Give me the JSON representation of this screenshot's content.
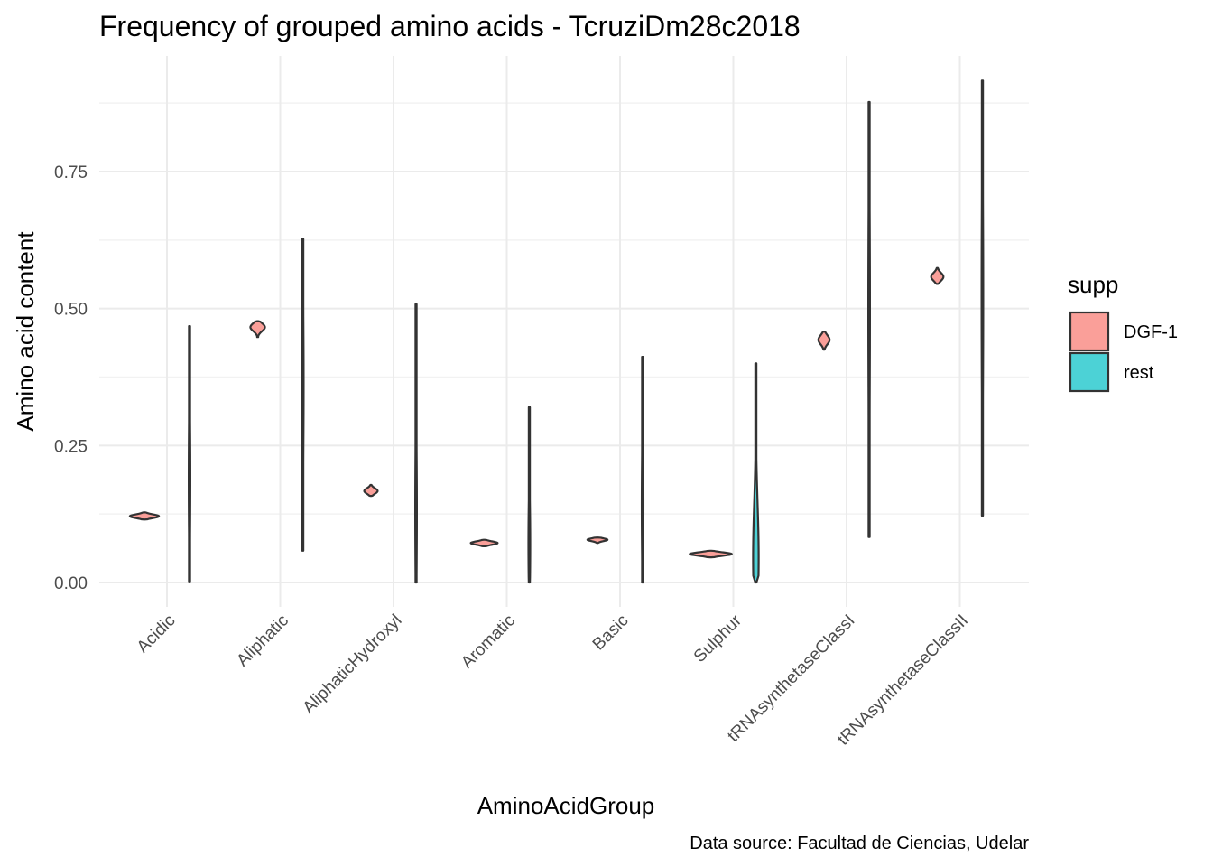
{
  "chart_data": {
    "type": "violin",
    "title": "Frequency of grouped amino acids - TcruziDm28c2018",
    "xlabel": "AminoAcidGroup",
    "ylabel": "Amino acid content",
    "caption": "Data source: Facultad de Ciencias, Udelar",
    "categories": [
      "Acidic",
      "Aliphatic",
      "AliphaticHydroxyl",
      "Aromatic",
      "Basic",
      "Sulphur",
      "tRNAsynthetaseClassI",
      "tRNAsynthetaseClassII"
    ],
    "ylim": [
      -0.09,
      0.92
    ],
    "yticks": [
      0.0,
      0.25,
      0.5,
      0.75
    ],
    "ytick_labels": [
      "0.00",
      "0.25",
      "0.50",
      "0.75"
    ],
    "grid": true,
    "legend": {
      "title": "supp",
      "position": "right",
      "entries": [
        {
          "name": "DGF-1",
          "color": "#F8766D"
        },
        {
          "name": "rest",
          "color": "#00BFC4"
        }
      ]
    },
    "series": [
      {
        "name": "DGF-1",
        "color": "#F8766D",
        "ranges": [
          [
            0.115,
            0.128
          ],
          [
            0.448,
            0.477
          ],
          [
            0.158,
            0.178
          ],
          [
            0.066,
            0.078
          ],
          [
            0.072,
            0.082
          ],
          [
            0.046,
            0.058
          ],
          [
            0.425,
            0.458
          ],
          [
            0.545,
            0.574
          ]
        ],
        "peaks": [
          0.121,
          0.466,
          0.167,
          0.072,
          0.078,
          0.052,
          0.443,
          0.558
        ],
        "max_half_width": [
          0.52,
          0.26,
          0.24,
          0.48,
          0.36,
          0.75,
          0.2,
          0.22
        ]
      },
      {
        "name": "rest",
        "color": "#00BFC4",
        "ranges": [
          [
            0.002,
            0.468
          ],
          [
            0.058,
            0.627
          ],
          [
            0.0,
            0.508
          ],
          [
            0.0,
            0.32
          ],
          [
            0.0,
            0.412
          ],
          [
            0.0,
            0.4
          ],
          [
            0.083,
            0.877
          ],
          [
            0.122,
            0.916
          ]
        ],
        "peaks": [
          0.19,
          0.36,
          0.13,
          0.07,
          0.14,
          0.045,
          0.5,
          0.52
        ],
        "max_half_width": [
          0.025,
          0.03,
          0.028,
          0.032,
          0.03,
          0.1,
          0.028,
          0.024
        ]
      }
    ]
  }
}
